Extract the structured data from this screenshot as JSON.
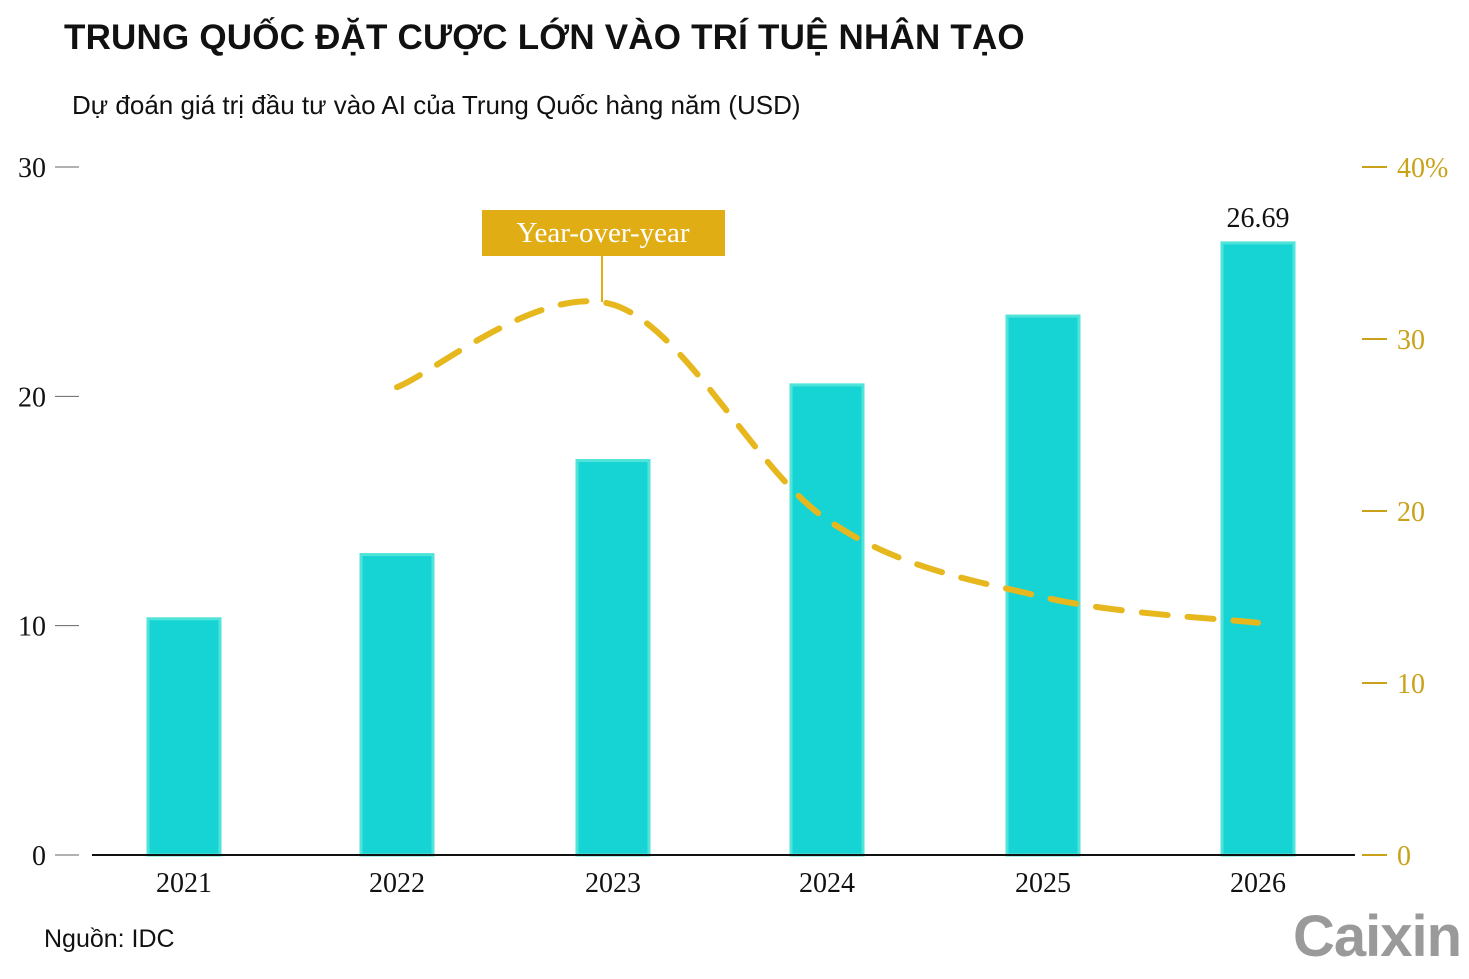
{
  "title": "TRUNG QUỐC ĐẶT CƯỢC LỚN VÀO TRÍ TUỆ NHÂN TẠO",
  "subtitle": "Dự đoán giá trị đầu tư vào AI của Trung Quốc hàng năm (USD)",
  "source": "Nguồn: IDC",
  "logo": "Caixin",
  "chart_data": {
    "type": "bar",
    "categories": [
      "2021",
      "2022",
      "2023",
      "2024",
      "2025",
      "2026"
    ],
    "series": [
      {
        "type": "bar",
        "axis": "left",
        "values": [
          10.3,
          13.1,
          17.2,
          20.5,
          23.5,
          26.69
        ],
        "color": "#17d4d4"
      },
      {
        "name": "Year-over-year",
        "type": "line",
        "style": "dashed",
        "axis": "right",
        "values": [
          null,
          27.2,
          32.0,
          19.5,
          15.0,
          13.5
        ],
        "color": "#e6b81e"
      }
    ],
    "data_labels": [
      {
        "category": "2026",
        "text": "26.69"
      }
    ],
    "left_axis": {
      "ylim": [
        0,
        30
      ],
      "ticks": [
        "0",
        "10",
        "20",
        "30"
      ]
    },
    "right_axis": {
      "ylim": [
        0,
        40
      ],
      "ticks": [
        "0",
        "10",
        "20",
        "30",
        "40%"
      ],
      "color": "#c9a21a"
    },
    "legend": {
      "text": "Year-over-year",
      "placement": "top-center",
      "box_color": "#e0ad14"
    },
    "grid": false
  }
}
